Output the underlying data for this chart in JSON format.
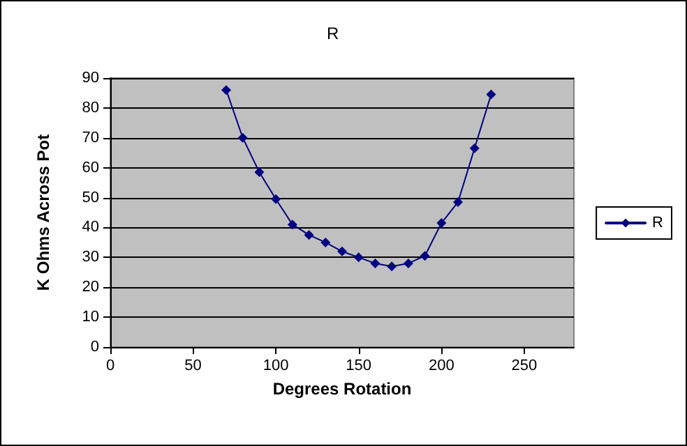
{
  "chart_data": {
    "type": "line",
    "title": "R",
    "xlabel": "Degrees Rotation",
    "ylabel": "K Ohms Across Pot",
    "x": [
      70,
      80,
      90,
      100,
      110,
      120,
      130,
      140,
      150,
      160,
      170,
      180,
      190,
      200,
      210,
      220,
      230
    ],
    "series": [
      {
        "name": "R",
        "color": "#000080",
        "values": [
          86,
          70,
          58.5,
          49.5,
          41,
          37.5,
          35,
          32,
          30,
          28,
          27,
          28,
          30.5,
          41.5,
          48.5,
          66.5,
          84.5
        ]
      }
    ],
    "xlim": [
      0,
      280
    ],
    "xticks": [
      0,
      50,
      100,
      150,
      200,
      250
    ],
    "ylim": [
      0,
      90
    ],
    "yticks": [
      0,
      10,
      20,
      30,
      40,
      50,
      60,
      70,
      80,
      90
    ],
    "grid": "y",
    "legend": "right",
    "marker": "diamond",
    "line_style": "solid"
  }
}
